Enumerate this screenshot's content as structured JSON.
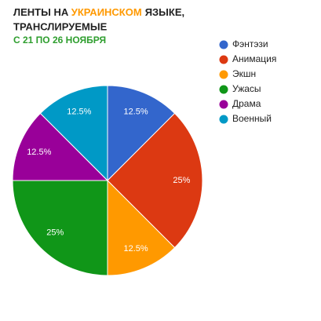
{
  "chart_data": {
    "type": "pie",
    "title": [
      "ЛЕНТЫ НА",
      "УКРАИНСКОМ",
      "ЯЗЫКЕ,",
      "ТРАНСЛИРУЕМЫЕ"
    ],
    "title_highlight_color": "#ff9900",
    "subtitle": "С 21 ПО 26 НОЯБРЯ",
    "categories": [
      "Фэнтэзи",
      "Анимация",
      "Экшн",
      "Ужасы",
      "Драма",
      "Военный"
    ],
    "values": [
      12.5,
      25,
      12.5,
      25,
      12.5,
      12.5
    ],
    "value_labels": [
      "12.5%",
      "25%",
      "12.5%",
      "25%",
      "12.5%",
      "12.5%"
    ],
    "colors": [
      "#3366cc",
      "#dc3912",
      "#ff9900",
      "#109618",
      "#990099",
      "#0099c6"
    ],
    "legend": "right"
  }
}
